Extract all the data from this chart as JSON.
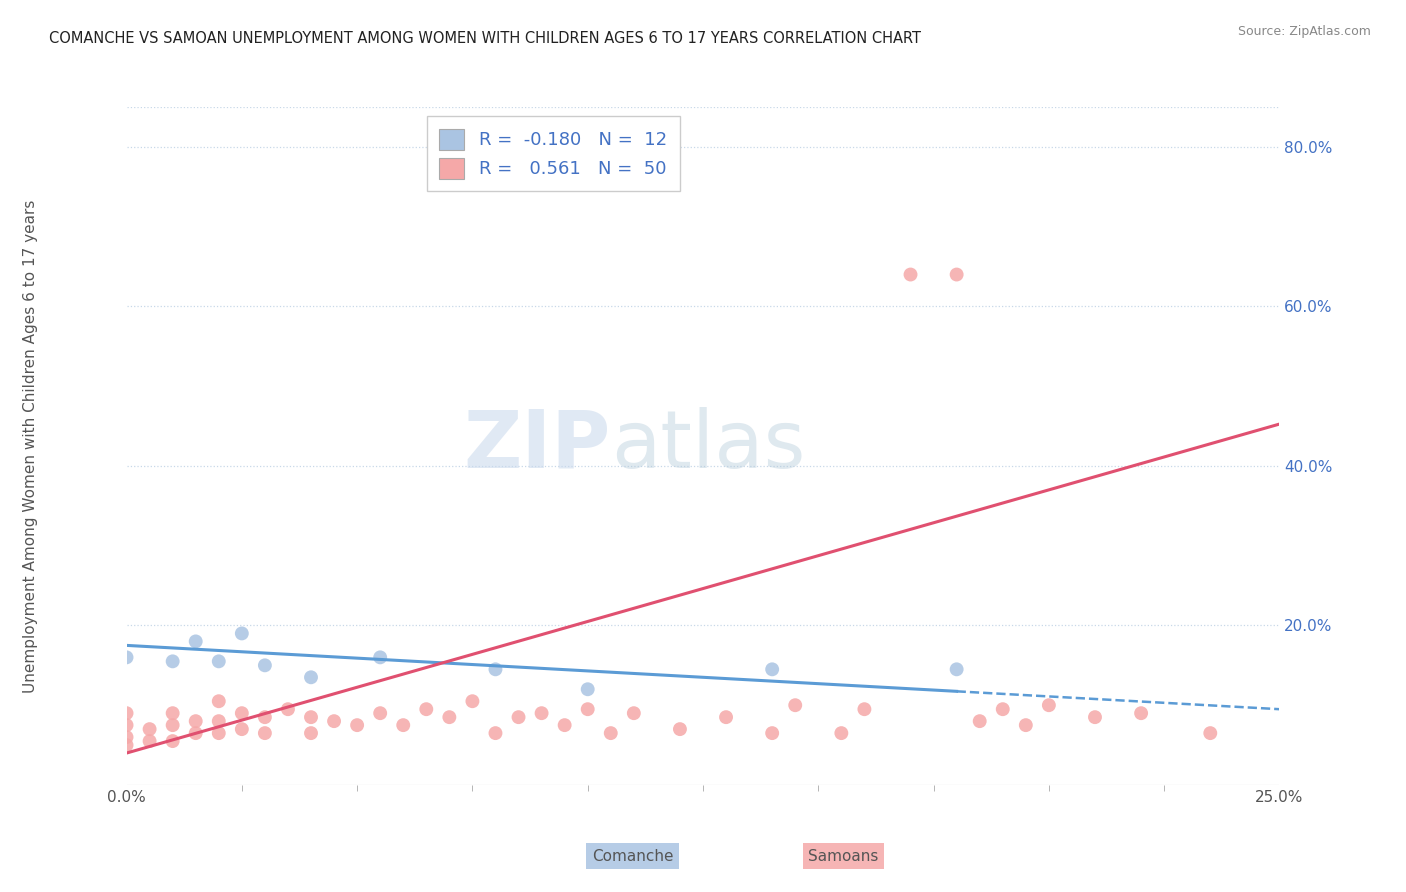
{
  "title": "COMANCHE VS SAMOAN UNEMPLOYMENT AMONG WOMEN WITH CHILDREN AGES 6 TO 17 YEARS CORRELATION CHART",
  "source": "Source: ZipAtlas.com",
  "ylabel": "Unemployment Among Women with Children Ages 6 to 17 years",
  "comanche_R": "-0.180",
  "comanche_N": "12",
  "samoan_R": "0.561",
  "samoan_N": "50",
  "comanche_color": "#aac4e2",
  "samoan_color": "#f5a8a8",
  "line_comanche_color": "#5b9bd5",
  "line_samoan_color": "#e05070",
  "background_color": "#ffffff",
  "xlim": [
    0.0,
    0.25
  ],
  "ylim": [
    0.0,
    0.85
  ],
  "comanche_x": [
    0.0,
    0.01,
    0.015,
    0.02,
    0.025,
    0.03,
    0.04,
    0.055,
    0.08,
    0.1,
    0.14,
    0.18
  ],
  "comanche_y": [
    0.16,
    0.155,
    0.18,
    0.155,
    0.19,
    0.15,
    0.135,
    0.16,
    0.145,
    0.12,
    0.145,
    0.145
  ],
  "samoan_x": [
    0.0,
    0.0,
    0.0,
    0.0,
    0.005,
    0.005,
    0.01,
    0.01,
    0.01,
    0.015,
    0.015,
    0.02,
    0.02,
    0.02,
    0.025,
    0.025,
    0.03,
    0.03,
    0.035,
    0.04,
    0.04,
    0.045,
    0.05,
    0.055,
    0.06,
    0.065,
    0.07,
    0.075,
    0.08,
    0.085,
    0.09,
    0.095,
    0.1,
    0.105,
    0.11,
    0.12,
    0.13,
    0.14,
    0.145,
    0.155,
    0.16,
    0.17,
    0.18,
    0.185,
    0.19,
    0.195,
    0.2,
    0.21,
    0.22,
    0.235
  ],
  "samoan_y": [
    0.05,
    0.06,
    0.075,
    0.09,
    0.055,
    0.07,
    0.055,
    0.075,
    0.09,
    0.065,
    0.08,
    0.065,
    0.08,
    0.105,
    0.07,
    0.09,
    0.065,
    0.085,
    0.095,
    0.065,
    0.085,
    0.08,
    0.075,
    0.09,
    0.075,
    0.095,
    0.085,
    0.105,
    0.065,
    0.085,
    0.09,
    0.075,
    0.095,
    0.065,
    0.09,
    0.07,
    0.085,
    0.065,
    0.1,
    0.065,
    0.095,
    0.64,
    0.64,
    0.08,
    0.095,
    0.075,
    0.1,
    0.085,
    0.09,
    0.065
  ]
}
